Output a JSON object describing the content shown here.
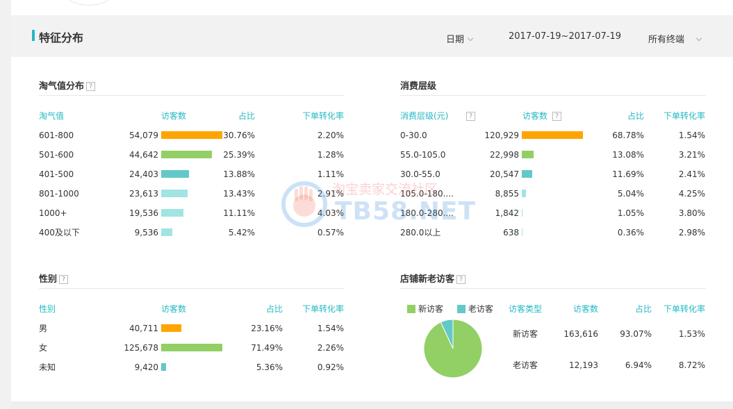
{
  "header": {
    "title": "特征分布",
    "date_label": "日期",
    "date_range": "2017-07-19~2017-07-19",
    "terminal": "所有终端"
  },
  "colors": {
    "accent": "#23b8c4",
    "orange": "#ffa500",
    "green": "#92cf65",
    "teal": "#62c8c8",
    "light_teal": "#a0e4e4"
  },
  "taoqi": {
    "title": "淘气值分布",
    "help_icon": "?",
    "headers": [
      "淘气值",
      "访客数",
      "占比",
      "下单转化率"
    ],
    "max": 54079,
    "rows": [
      {
        "label": "601-800",
        "visitors": "54,079",
        "value": 54079,
        "share": "30.76%",
        "conversion": "2.20%",
        "color": "#ffa500"
      },
      {
        "label": "501-600",
        "visitors": "44,642",
        "value": 44642,
        "share": "25.39%",
        "conversion": "1.28%",
        "color": "#92cf65"
      },
      {
        "label": "401-500",
        "visitors": "24,403",
        "value": 24403,
        "share": "13.88%",
        "conversion": "1.11%",
        "color": "#62c8c8"
      },
      {
        "label": "801-1000",
        "visitors": "23,613",
        "value": 23613,
        "share": "13.43%",
        "conversion": "2.91%",
        "color": "#a0e4e4"
      },
      {
        "label": "1000+",
        "visitors": "19,536",
        "value": 19536,
        "share": "11.11%",
        "conversion": "4.03%",
        "color": "#a0e4e4"
      },
      {
        "label": "400及以下",
        "visitors": "9,536",
        "value": 9536,
        "share": "5.42%",
        "conversion": "0.57%",
        "color": "#a0e4e4"
      }
    ]
  },
  "consumption": {
    "title": "消费层级",
    "help_icon": "?",
    "headers": [
      "消费层级(元)",
      "访客数",
      "占比",
      "下单转化率"
    ],
    "max": 120929,
    "rows": [
      {
        "label": "0-30.0",
        "visitors": "120,929",
        "value": 120929,
        "share": "68.78%",
        "conversion": "1.54%",
        "color": "#ffa500"
      },
      {
        "label": "55.0-105.0",
        "visitors": "22,998",
        "value": 22998,
        "share": "13.08%",
        "conversion": "3.21%",
        "color": "#92cf65"
      },
      {
        "label": "30.0-55.0",
        "visitors": "20,547",
        "value": 20547,
        "share": "11.69%",
        "conversion": "2.41%",
        "color": "#62c8c8"
      },
      {
        "label": "105.0-180....",
        "visitors": "8,855",
        "value": 8855,
        "share": "5.04%",
        "conversion": "4.25%",
        "color": "#a0e4e4"
      },
      {
        "label": "180.0-280....",
        "visitors": "1,842",
        "value": 1842,
        "share": "1.05%",
        "conversion": "3.80%",
        "color": "#a0e4e4"
      },
      {
        "label": "280.0以上",
        "visitors": "638",
        "value": 638,
        "share": "0.36%",
        "conversion": "2.98%",
        "color": "#a0e4e4"
      }
    ]
  },
  "gender": {
    "title": "性别",
    "help_icon": "?",
    "headers": [
      "性别",
      "访客数",
      "占比",
      "下单转化率"
    ],
    "max": 125678,
    "rows": [
      {
        "label": "男",
        "visitors": "40,711",
        "value": 40711,
        "share": "23.16%",
        "conversion": "1.54%",
        "color": "#ffa500"
      },
      {
        "label": "女",
        "visitors": "125,678",
        "value": 125678,
        "share": "71.49%",
        "conversion": "2.26%",
        "color": "#92cf65"
      },
      {
        "label": "未知",
        "visitors": "9,420",
        "value": 9420,
        "share": "5.36%",
        "conversion": "0.92%",
        "color": "#62c8c8"
      }
    ]
  },
  "new_old": {
    "title": "店铺新老访客",
    "help_icon": "?",
    "legend": [
      {
        "name": "新访客",
        "color": "#92cf65"
      },
      {
        "name": "老访客",
        "color": "#62c8c8"
      }
    ],
    "headers": [
      "访客类型",
      "访客数",
      "占比",
      "下单转化率"
    ],
    "rows": [
      {
        "label": "新访客",
        "visitors": "163,616",
        "share": "93.07%",
        "conversion": "1.53%"
      },
      {
        "label": "老访客",
        "visitors": "12,193",
        "share": "6.94%",
        "conversion": "8.72%"
      }
    ],
    "chart_data": {
      "type": "pie",
      "categories": [
        "新访客",
        "老访客"
      ],
      "values": [
        93.07,
        6.94
      ]
    }
  },
  "watermark": {
    "line1": "淘宝卖家交流社区",
    "line2": "TB58.NET"
  }
}
